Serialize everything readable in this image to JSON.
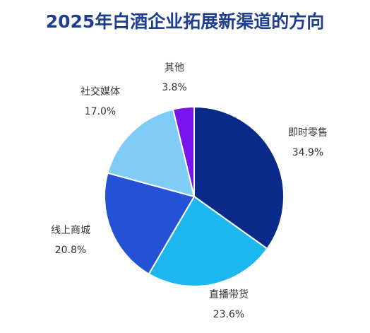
{
  "chart_data": {
    "type": "pie",
    "title": "2025年白酒企业拓展新渠道的方向",
    "slices": [
      {
        "label": "即时零售",
        "value": 34.9,
        "value_label": "34.9%",
        "color": "#0a2a8a"
      },
      {
        "label": "直播带货",
        "value": 23.6,
        "value_label": "23.6%",
        "color": "#1cb6f0"
      },
      {
        "label": "线上商城",
        "value": 20.8,
        "value_label": "20.8%",
        "color": "#2451d6"
      },
      {
        "label": "社交媒体",
        "value": 17.0,
        "value_label": "17.0%",
        "color": "#7fcdf7"
      },
      {
        "label": "其他",
        "value": 3.8,
        "value_label": "3.8%",
        "color": "#7a14ee"
      }
    ],
    "start_angle": "12 o'clock",
    "direction": "clockwise",
    "legend": "none"
  }
}
